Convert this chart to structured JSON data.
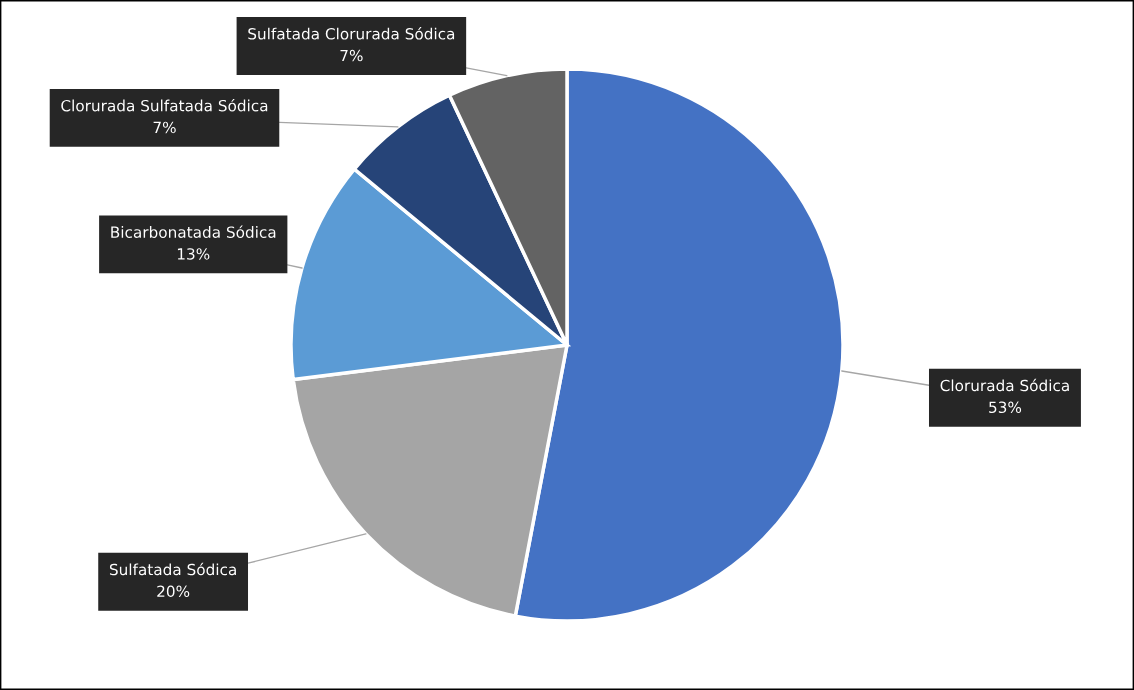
{
  "chart_data": {
    "type": "pie",
    "categories": [
      "Clorurada Sódica",
      "Sulfatada Sódica",
      "Bicarbonatada Sódica",
      "Clorurada Sulfatada Sódica",
      "Sulfatada Clorurada Sódica"
    ],
    "values": [
      53,
      20,
      13,
      7,
      7
    ],
    "value_labels": [
      "53%",
      "20%",
      "13%",
      "7%",
      "7%"
    ],
    "colors": [
      "#4472c4",
      "#a5a5a5",
      "#5b9bd5",
      "#264478",
      "#636363"
    ]
  }
}
